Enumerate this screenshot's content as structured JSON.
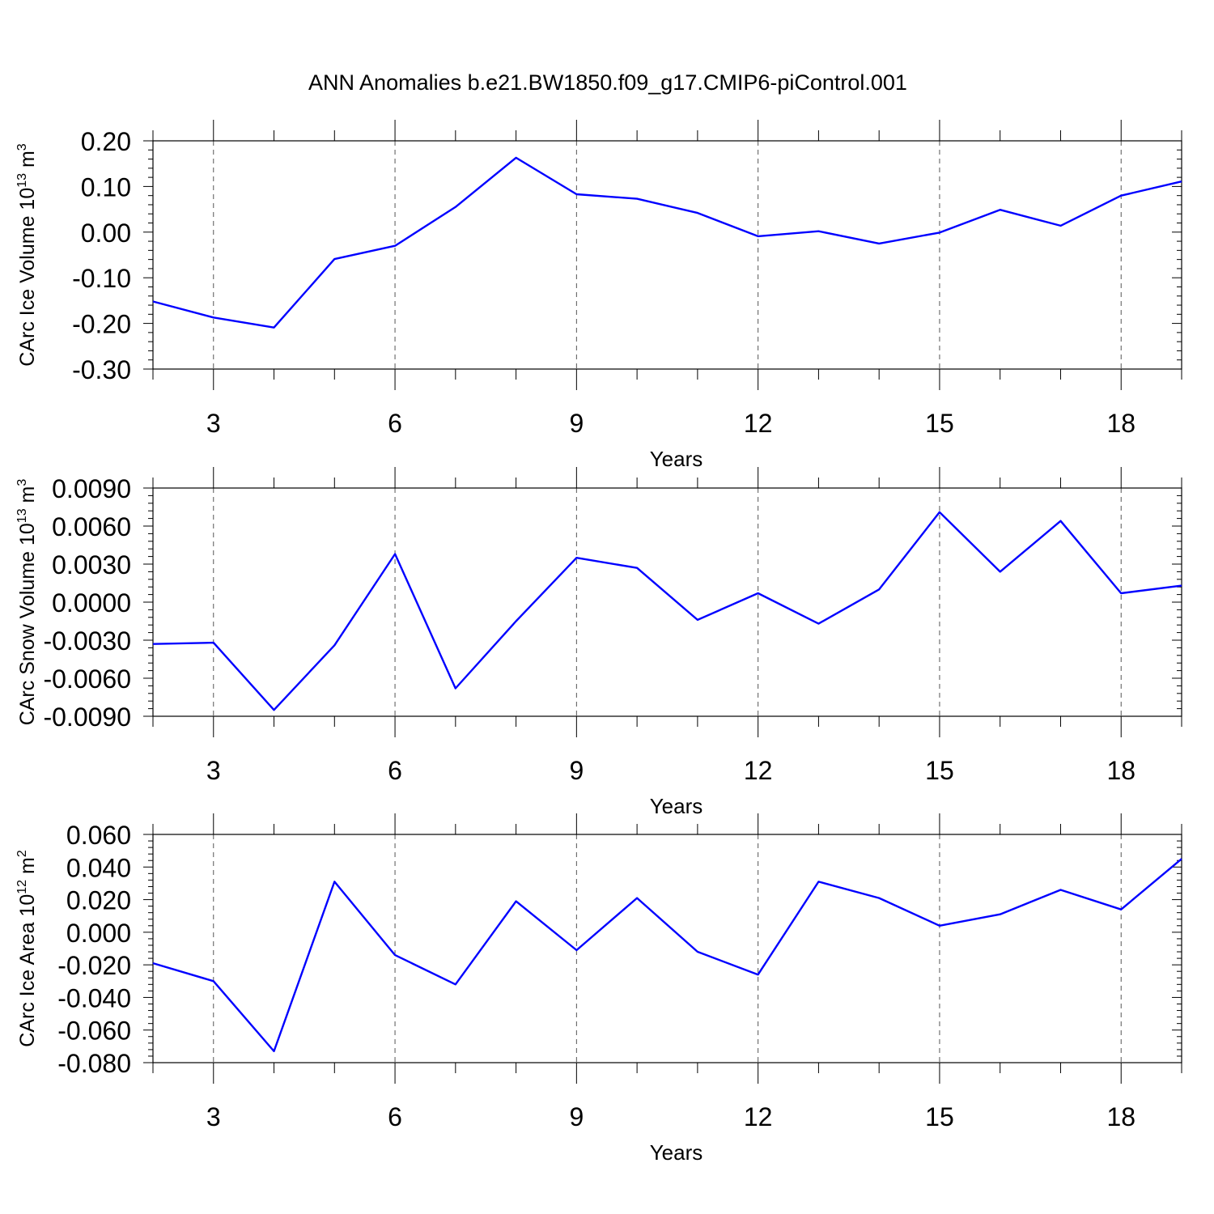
{
  "title": "ANN Anomalies b.e21.BW1850.f09_g17.CMIP6-piControl.001",
  "colors": {
    "line": "#0000ff",
    "axes": "#000000",
    "grid": "#555555"
  },
  "chart_data": [
    {
      "type": "line",
      "title": "",
      "xlabel": "Years",
      "ylabel": "CArc Ice Volume 10",
      "ylabel_exp": "13",
      "ylabel_unit": " m",
      "ylabel_unit_exp": "3",
      "xlim": [
        2,
        19
      ],
      "ylim": [
        -0.3,
        0.2
      ],
      "x_ticks": [
        3,
        6,
        9,
        12,
        15,
        18
      ],
      "y_ticks": [
        "0.20",
        "0.10",
        "0.00",
        "-0.10",
        "-0.20",
        "-0.30"
      ],
      "y_tick_values": [
        0.2,
        0.1,
        0.0,
        -0.1,
        -0.2,
        -0.3
      ],
      "grid": "vertical dashed at major x ticks",
      "x": [
        2,
        3,
        4,
        5,
        6,
        7,
        8,
        9,
        10,
        11,
        12,
        13,
        14,
        15,
        16,
        17,
        18,
        19
      ],
      "values": [
        -0.152,
        -0.187,
        -0.209,
        -0.059,
        -0.03,
        0.055,
        0.163,
        0.083,
        0.073,
        0.042,
        -0.009,
        0.002,
        -0.025,
        -0.001,
        0.049,
        0.014,
        0.08,
        0.111
      ]
    },
    {
      "type": "line",
      "title": "",
      "xlabel": "Years",
      "ylabel": "CArc Snow Volume 10",
      "ylabel_exp": "13",
      "ylabel_unit": " m",
      "ylabel_unit_exp": "3",
      "xlim": [
        2,
        19
      ],
      "ylim": [
        -0.009,
        0.009
      ],
      "x_ticks": [
        3,
        6,
        9,
        12,
        15,
        18
      ],
      "y_ticks": [
        "0.0090",
        "0.0060",
        "0.0030",
        "0.0000",
        "-0.0030",
        "-0.0060",
        "-0.0090"
      ],
      "y_tick_values": [
        0.009,
        0.006,
        0.003,
        0.0,
        -0.003,
        -0.006,
        -0.009
      ],
      "grid": "vertical dashed at major x ticks",
      "x": [
        2,
        3,
        4,
        5,
        6,
        7,
        8,
        9,
        10,
        11,
        12,
        13,
        14,
        15,
        16,
        17,
        18,
        19
      ],
      "values": [
        -0.0033,
        -0.0032,
        -0.0085,
        -0.0034,
        0.0038,
        -0.0068,
        -0.0015,
        0.0035,
        0.0027,
        -0.0014,
        0.0007,
        -0.0017,
        0.001,
        0.0071,
        0.0024,
        0.0064,
        0.0007,
        0.0013
      ]
    },
    {
      "type": "line",
      "title": "",
      "xlabel": "Years",
      "ylabel": "CArc Ice Area 10",
      "ylabel_exp": "12",
      "ylabel_unit": " m",
      "ylabel_unit_exp": "2",
      "xlim": [
        2,
        19
      ],
      "ylim": [
        -0.08,
        0.06
      ],
      "x_ticks": [
        3,
        6,
        9,
        12,
        15,
        18
      ],
      "y_ticks": [
        "0.060",
        "0.040",
        "0.020",
        "0.000",
        "-0.020",
        "-0.040",
        "-0.060",
        "-0.080"
      ],
      "y_tick_values": [
        0.06,
        0.04,
        0.02,
        0.0,
        -0.02,
        -0.04,
        -0.06,
        -0.08
      ],
      "grid": "vertical dashed at major x ticks",
      "x": [
        2,
        3,
        4,
        5,
        6,
        7,
        8,
        9,
        10,
        11,
        12,
        13,
        14,
        15,
        16,
        17,
        18,
        19
      ],
      "values": [
        -0.019,
        -0.03,
        -0.073,
        0.031,
        -0.014,
        -0.032,
        0.019,
        -0.011,
        0.021,
        -0.012,
        -0.026,
        0.031,
        0.021,
        0.004,
        0.011,
        0.026,
        0.014,
        0.045
      ]
    }
  ]
}
